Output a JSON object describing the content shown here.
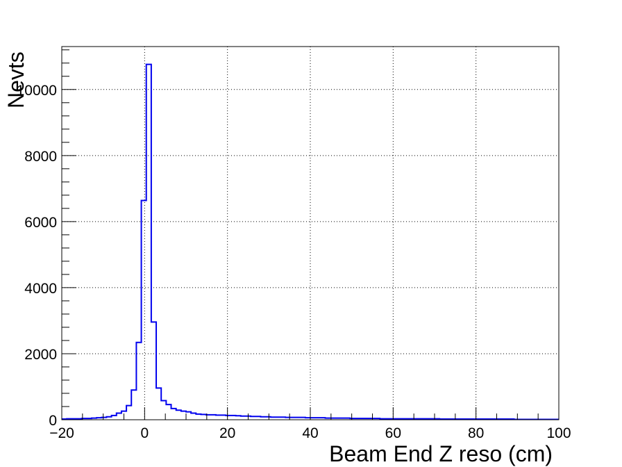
{
  "chart_data": {
    "type": "histogram",
    "title": "",
    "xlabel": "Beam End Z reso (cm)",
    "ylabel": "Nevts",
    "xlim": [
      -20,
      100
    ],
    "ylim": [
      0,
      11300
    ],
    "grid": true,
    "bin_width": 1.2,
    "bin_edges_start": -20,
    "x_ticks": [
      -20,
      0,
      20,
      40,
      60,
      80,
      100
    ],
    "x_tick_labels": [
      "−20",
      "0",
      "20",
      "40",
      "60",
      "80",
      "100"
    ],
    "y_ticks": [
      0,
      2000,
      4000,
      6000,
      8000,
      10000
    ],
    "y_tick_labels": [
      "0",
      "2000",
      "4000",
      "6000",
      "8000",
      "10000"
    ],
    "line_color": "#0000ee",
    "values": [
      20,
      30,
      30,
      30,
      40,
      40,
      50,
      60,
      70,
      90,
      130,
      200,
      260,
      430,
      900,
      2340,
      6640,
      10760,
      2960,
      960,
      580,
      460,
      340,
      290,
      260,
      240,
      200,
      170,
      160,
      150,
      150,
      140,
      140,
      130,
      130,
      120,
      110,
      110,
      100,
      100,
      90,
      90,
      80,
      80,
      80,
      70,
      70,
      70,
      70,
      60,
      60,
      60,
      60,
      50,
      50,
      50,
      50,
      50,
      40,
      40,
      40,
      40,
      40,
      40,
      30,
      30,
      30,
      30,
      30,
      30,
      30,
      30,
      30,
      30,
      30,
      30,
      20,
      20,
      20,
      20,
      20,
      20,
      20,
      20,
      20,
      20,
      20,
      20,
      20,
      20,
      20,
      10,
      10,
      10,
      10,
      10,
      10,
      10,
      10,
      10
    ]
  }
}
